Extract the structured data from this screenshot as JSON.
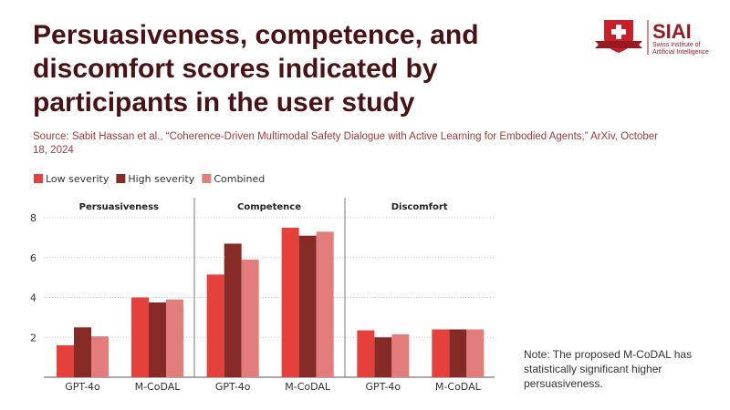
{
  "title": "Persuasiveness, competence, and discomfort scores indicated by participants in the user study",
  "source": "Source: Sabit Hassan et al., “Coherence-Driven Multimodal Safety Dialogue with Active Learning for Embodied Agents,” ArXiv, October 18, 2024",
  "note": "Note: The proposed M-CoDAL has statistically significant higher persuasiveness.",
  "logo": {
    "name": "SIAI",
    "subtitle_1": "Swiss Institute of",
    "subtitle_2": "Artificial Intelligence"
  },
  "colors": {
    "low": "#e5403b",
    "high": "#862a26",
    "combined": "#e27d7b",
    "title": "#4a1214"
  },
  "chart_data": {
    "type": "bar",
    "panels": [
      "Persuasiveness",
      "Competence",
      "Discomfort"
    ],
    "categories": [
      "GPT-4o",
      "M-CoDAL"
    ],
    "legend": [
      "Low severity",
      "High severity",
      "Combined"
    ],
    "legend_position": "top-left",
    "ylim": [
      0,
      8.5
    ],
    "yticks": [
      2,
      4,
      6,
      8
    ],
    "grid": true,
    "series": [
      {
        "name": "Low severity",
        "values": [
          [
            1.6,
            4.0
          ],
          [
            5.15,
            7.5
          ],
          [
            2.35,
            2.4
          ]
        ]
      },
      {
        "name": "High severity",
        "values": [
          [
            2.5,
            3.75
          ],
          [
            6.7,
            7.1
          ],
          [
            2.0,
            2.4
          ]
        ]
      },
      {
        "name": "Combined",
        "values": [
          [
            2.05,
            3.9
          ],
          [
            5.9,
            7.3
          ],
          [
            2.15,
            2.4
          ]
        ]
      }
    ]
  }
}
